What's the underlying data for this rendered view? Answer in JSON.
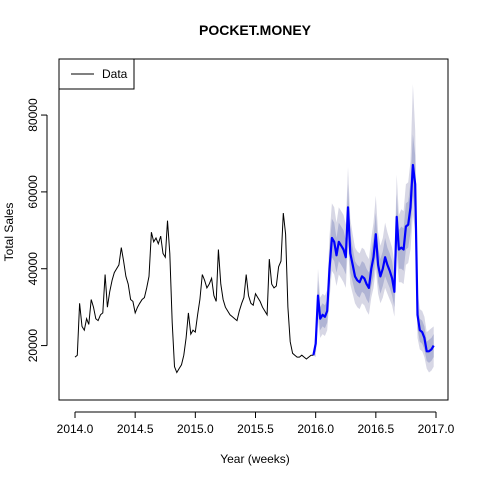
{
  "chart_data": {
    "type": "line",
    "title": "POCKET.MONEY",
    "xlabel": "Year (weeks)",
    "ylabel": "Total Sales",
    "xlim": [
      2014.0,
      2017.0
    ],
    "ylim": [
      8000,
      90000
    ],
    "x_ticks": [
      2014.0,
      2014.5,
      2015.0,
      2015.5,
      2016.0,
      2016.5,
      2017.0
    ],
    "x_tick_labels": [
      "2014.0",
      "2014.5",
      "2015.0",
      "2015.5",
      "2016.0",
      "2016.5",
      "2017.0"
    ],
    "y_ticks": [
      20000,
      40000,
      60000,
      80000
    ],
    "y_tick_labels": [
      "20000",
      "40000",
      "60000",
      "80000"
    ],
    "grid": false,
    "legend": {
      "position": "top-left",
      "entries": [
        "Data"
      ]
    },
    "colors": {
      "data": "#000000",
      "forecast": "#0000ff",
      "band_outer": "#d7d7e5",
      "band_inner": "#b0b4d4"
    },
    "series": [
      {
        "name": "Data",
        "x": [
          2014.0,
          2014.019,
          2014.038,
          2014.058,
          2014.067,
          2014.077,
          2014.096,
          2014.115,
          2014.135,
          2014.154,
          2014.173,
          2014.192,
          2014.212,
          2014.231,
          2014.25,
          2014.269,
          2014.288,
          2014.308,
          2014.327,
          2014.346,
          2014.365,
          2014.385,
          2014.404,
          2014.423,
          2014.442,
          2014.462,
          2014.481,
          2014.5,
          2014.519,
          2014.538,
          2014.558,
          2014.577,
          2014.596,
          2014.615,
          2014.635,
          2014.654,
          2014.673,
          2014.692,
          2014.712,
          2014.731,
          2014.75,
          2014.769,
          2014.788,
          2014.808,
          2014.827,
          2014.846,
          2014.865,
          2014.885,
          2014.904,
          2014.923,
          2014.942,
          2014.962,
          2014.981,
          2015.0,
          2015.019,
          2015.038,
          2015.058,
          2015.077,
          2015.096,
          2015.115,
          2015.135,
          2015.154,
          2015.173,
          2015.192,
          2015.212,
          2015.231,
          2015.25,
          2015.269,
          2015.288,
          2015.308,
          2015.327,
          2015.346,
          2015.365,
          2015.385,
          2015.404,
          2015.423,
          2015.442,
          2015.462,
          2015.481,
          2015.5,
          2015.519,
          2015.538,
          2015.558,
          2015.577,
          2015.596,
          2015.615,
          2015.635,
          2015.654,
          2015.673,
          2015.692,
          2015.712,
          2015.731,
          2015.75,
          2015.769,
          2015.788,
          2015.808,
          2015.827,
          2015.846,
          2015.865,
          2015.885,
          2015.904,
          2015.923,
          2015.942,
          2015.962,
          2015.981
        ],
        "values": [
          17000,
          17500,
          31000,
          25000,
          24500,
          24000,
          27000,
          25500,
          32000,
          30000,
          27000,
          26500,
          28000,
          28500,
          38500,
          30000,
          34000,
          37000,
          39000,
          40000,
          41000,
          45500,
          42000,
          38000,
          36000,
          32000,
          31500,
          28500,
          30000,
          31000,
          32000,
          32500,
          35000,
          38000,
          49500,
          47000,
          48000,
          46500,
          48500,
          44000,
          43000,
          52500,
          44000,
          26000,
          14500,
          13000,
          14000,
          15000,
          17500,
          22000,
          28500,
          23000,
          24000,
          23500,
          28000,
          32000,
          38500,
          37000,
          35000,
          36000,
          37500,
          33000,
          31500,
          45000,
          36000,
          32000,
          30000,
          29000,
          28000,
          27500,
          27000,
          26500,
          29000,
          31000,
          32500,
          38500,
          33000,
          31000,
          30500,
          33500,
          32500,
          31500,
          30000,
          29000,
          28000,
          42500,
          36000,
          35000,
          35500,
          40500,
          42000,
          54500,
          49000,
          30000,
          21000,
          18000,
          17500,
          17000,
          17000,
          17500,
          17000,
          16500,
          17000,
          17500,
          17500
        ]
      },
      {
        "name": "",
        "x": [
          2015.981,
          2016.0,
          2016.019,
          2016.038,
          2016.058,
          2016.077,
          2016.096,
          2016.115,
          2016.135,
          2016.154,
          2016.173,
          2016.192,
          2016.212,
          2016.231,
          2016.25,
          2016.269,
          2016.288,
          2016.308,
          2016.327,
          2016.346,
          2016.365,
          2016.385,
          2016.404,
          2016.423,
          2016.442,
          2016.462,
          2016.481,
          2016.5,
          2016.519,
          2016.538,
          2016.558,
          2016.577,
          2016.596,
          2016.615,
          2016.635,
          2016.654,
          2016.673,
          2016.692,
          2016.712,
          2016.731,
          2016.75,
          2016.769,
          2016.788,
          2016.808,
          2016.827,
          2016.846,
          2016.865,
          2016.885,
          2016.904,
          2016.923,
          2016.942,
          2016.962,
          2016.981
        ],
        "values": [
          17500,
          20500,
          33000,
          27000,
          28000,
          27500,
          29000,
          40000,
          48000,
          47000,
          43500,
          47000,
          46000,
          45000,
          43000,
          56000,
          44000,
          41000,
          38000,
          37000,
          36500,
          38000,
          37500,
          36000,
          35000,
          40000,
          43000,
          49000,
          41000,
          38000,
          40000,
          43000,
          41000,
          39500,
          37500,
          34000,
          53500,
          45000,
          45500,
          45000,
          51000,
          51500,
          56000,
          67000,
          62000,
          28000,
          24000,
          23500,
          22000,
          18500,
          18500,
          19000,
          20000
        ],
        "band_inner": {
          "lower": [
            17500,
            18500,
            29000,
            24000,
            25000,
            24500,
            26000,
            35000,
            43000,
            42000,
            39000,
            42000,
            41000,
            40000,
            38500,
            50000,
            39000,
            36500,
            34000,
            33000,
            32500,
            34000,
            33500,
            32000,
            31000,
            35500,
            38000,
            43500,
            36500,
            33500,
            35500,
            38000,
            36500,
            35000,
            33000,
            30000,
            47500,
            40000,
            40000,
            39500,
            45000,
            45500,
            49500,
            59000,
            54500,
            24500,
            21000,
            20500,
            19000,
            16000,
            15500,
            16000,
            17000
          ],
          "upper": [
            17500,
            22500,
            37000,
            30000,
            31000,
            30500,
            32000,
            45000,
            53000,
            52000,
            48000,
            52000,
            51000,
            50000,
            47500,
            62000,
            49000,
            45500,
            42000,
            41000,
            40500,
            42000,
            41500,
            40000,
            39000,
            44500,
            48000,
            54500,
            45500,
            42500,
            44500,
            48000,
            45500,
            44000,
            42000,
            38000,
            59500,
            50000,
            51000,
            50500,
            57000,
            57500,
            62500,
            75000,
            69500,
            31500,
            27000,
            26500,
            25000,
            21000,
            21500,
            22000,
            23000
          ]
        },
        "band_outer": {
          "lower": [
            17500,
            17000,
            26500,
            22000,
            23000,
            22500,
            24000,
            32000,
            39500,
            38500,
            35500,
            38500,
            37500,
            36500,
            35000,
            46000,
            36000,
            33500,
            31000,
            30000,
            29500,
            31000,
            30500,
            29000,
            28000,
            32500,
            35000,
            40000,
            33500,
            31000,
            32500,
            35000,
            33500,
            32000,
            30500,
            27500,
            43500,
            36500,
            36500,
            36000,
            41000,
            41500,
            45000,
            54000,
            50000,
            22000,
            19000,
            18500,
            17000,
            14000,
            13000,
            13500,
            14500
          ],
          "upper": [
            17500,
            24000,
            40000,
            32500,
            33500,
            33000,
            34500,
            48500,
            57000,
            56000,
            52000,
            56000,
            55000,
            54000,
            51500,
            66500,
            53000,
            49000,
            45500,
            44500,
            44000,
            45500,
            45000,
            43500,
            42500,
            48000,
            52000,
            59000,
            49500,
            46000,
            48000,
            52000,
            49500,
            47500,
            45500,
            41500,
            64500,
            54000,
            55500,
            55000,
            62000,
            62500,
            68000,
            88000,
            76000,
            34500,
            29500,
            29000,
            27500,
            23500,
            24000,
            24500,
            25000
          ]
        }
      }
    ]
  }
}
